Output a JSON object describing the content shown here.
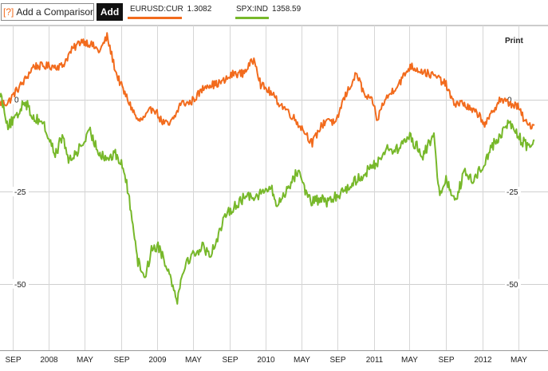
{
  "toolbar": {
    "help_icon": "[?]",
    "compare_value": "Add a Comparison",
    "add_label": "Add"
  },
  "legend": [
    {
      "symbol": "EURUSD:CUR",
      "value": "1.3082",
      "color": "#f26b1d"
    },
    {
      "symbol": "SPX:IND",
      "value": "1358.59",
      "color": "#77b82a"
    }
  ],
  "print_label": "Print",
  "chart_data": {
    "type": "line",
    "title": "",
    "xlabel": "",
    "ylabel": "",
    "ylim": [
      -68,
      20
    ],
    "y_ticks": [
      0,
      -25,
      -50
    ],
    "x_tick_labels": [
      "SEP",
      "2008",
      "MAY",
      "SEP",
      "2009",
      "MAY",
      "SEP",
      "2010",
      "MAY",
      "SEP",
      "2011",
      "MAY",
      "SEP",
      "2012",
      "MAY"
    ],
    "x_tick_dates": [
      "2007-09-01",
      "2008-01-01",
      "2008-05-01",
      "2008-09-01",
      "2009-01-01",
      "2009-05-01",
      "2009-09-01",
      "2010-01-01",
      "2010-05-01",
      "2010-09-01",
      "2011-01-01",
      "2011-05-01",
      "2011-09-01",
      "2012-01-01",
      "2012-05-01"
    ],
    "xlim": [
      "2007-07-20",
      "2012-06-25"
    ],
    "grid": true,
    "series": [
      {
        "name": "EURUSD:CUR",
        "color": "#f26b1d",
        "x": [
          "2007-07-20",
          "2007-08-15",
          "2007-09-10",
          "2007-10-10",
          "2007-11-10",
          "2007-12-15",
          "2008-01-15",
          "2008-02-15",
          "2008-03-15",
          "2008-04-20",
          "2008-05-20",
          "2008-06-20",
          "2008-07-15",
          "2008-08-15",
          "2008-09-10",
          "2008-10-10",
          "2008-10-28",
          "2008-11-20",
          "2008-12-18",
          "2009-01-15",
          "2009-02-10",
          "2009-03-05",
          "2009-03-20",
          "2009-04-20",
          "2009-05-15",
          "2009-06-15",
          "2009-07-15",
          "2009-08-15",
          "2009-09-15",
          "2009-10-15",
          "2009-11-25",
          "2009-12-15",
          "2010-01-15",
          "2010-02-15",
          "2010-03-15",
          "2010-04-15",
          "2010-05-15",
          "2010-06-07",
          "2010-07-01",
          "2010-07-30",
          "2010-08-25",
          "2010-09-15",
          "2010-10-15",
          "2010-11-04",
          "2010-11-30",
          "2010-12-31",
          "2011-01-10",
          "2011-02-01",
          "2011-03-01",
          "2011-04-01",
          "2011-05-03",
          "2011-06-01",
          "2011-07-01",
          "2011-08-01",
          "2011-09-01",
          "2011-09-25",
          "2011-10-27",
          "2011-11-25",
          "2011-12-20",
          "2012-01-12",
          "2012-02-28",
          "2012-03-30",
          "2012-04-30",
          "2012-05-31",
          "2012-06-25"
        ],
        "values": [
          -1,
          -1,
          2,
          5,
          9,
          9,
          9,
          9,
          13,
          16,
          15,
          13,
          17,
          7,
          2,
          -3,
          -6,
          -5,
          -2,
          -6,
          -7,
          -4,
          -1,
          -1,
          1,
          4,
          4,
          5,
          7,
          7,
          11,
          4,
          2,
          -1,
          -3,
          -6,
          -9,
          -12,
          -8,
          -5,
          -7,
          -1,
          4,
          7,
          1,
          -1,
          -6,
          -1,
          2,
          5,
          9,
          8,
          7,
          6,
          4,
          -1,
          -1,
          -3,
          -4,
          -7,
          0,
          -1,
          -2,
          -7,
          -7
        ]
      },
      {
        "name": "SPX:IND",
        "color": "#77b82a",
        "x": [
          "2007-07-20",
          "2007-08-16",
          "2007-09-15",
          "2007-10-09",
          "2007-11-10",
          "2007-12-10",
          "2008-01-22",
          "2008-02-15",
          "2008-03-10",
          "2008-04-15",
          "2008-05-19",
          "2008-06-15",
          "2008-07-15",
          "2008-08-15",
          "2008-09-10",
          "2008-10-10",
          "2008-10-27",
          "2008-11-20",
          "2008-12-15",
          "2009-01-06",
          "2009-02-01",
          "2009-03-09",
          "2009-04-01",
          "2009-05-01",
          "2009-06-01",
          "2009-07-01",
          "2009-08-01",
          "2009-09-01",
          "2009-10-01",
          "2009-11-01",
          "2009-12-01",
          "2010-01-19",
          "2010-02-08",
          "2010-03-01",
          "2010-04-23",
          "2010-05-20",
          "2010-06-07",
          "2010-07-02",
          "2010-08-01",
          "2010-09-01",
          "2010-10-01",
          "2010-11-01",
          "2010-12-01",
          "2011-01-01",
          "2011-02-18",
          "2011-03-16",
          "2011-04-29",
          "2011-06-15",
          "2011-07-22",
          "2011-08-08",
          "2011-09-01",
          "2011-10-03",
          "2011-11-01",
          "2011-12-01",
          "2012-01-02",
          "2012-02-01",
          "2012-03-01",
          "2012-04-02",
          "2012-05-01",
          "2012-06-01",
          "2012-06-25"
        ],
        "values": [
          2,
          -7,
          -5,
          0,
          -5,
          -6,
          -15,
          -10,
          -17,
          -13,
          -9,
          -14,
          -16,
          -15,
          -19,
          -33,
          -44,
          -48,
          -40,
          -40,
          -45,
          -54,
          -45,
          -42,
          -40,
          -42,
          -35,
          -30,
          -28,
          -26,
          -26,
          -24,
          -29,
          -26,
          -19,
          -26,
          -28,
          -27,
          -28,
          -26,
          -24,
          -22,
          -20,
          -18,
          -13,
          -14,
          -10,
          -15,
          -10,
          -25,
          -22,
          -27,
          -20,
          -22,
          -18,
          -13,
          -10,
          -6,
          -10,
          -13,
          -11
        ]
      }
    ]
  }
}
